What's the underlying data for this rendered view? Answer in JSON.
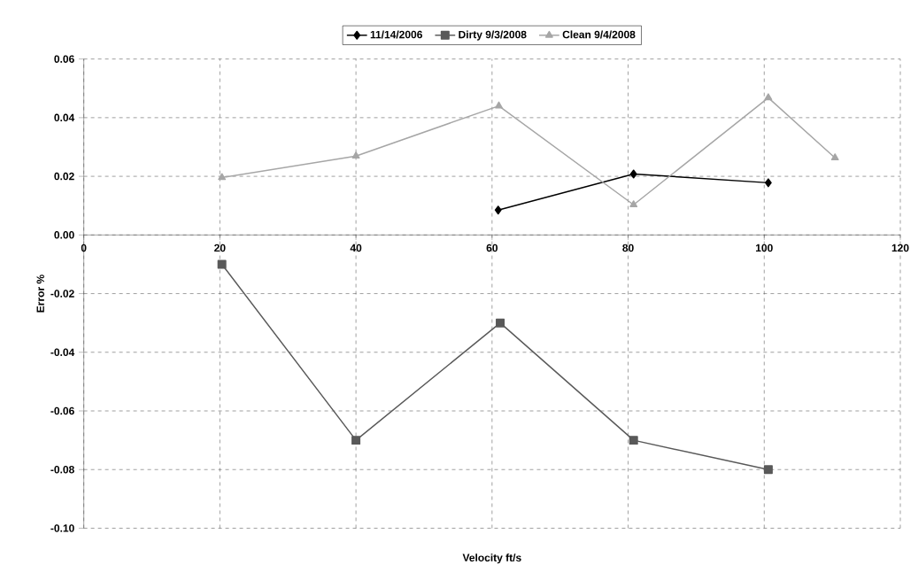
{
  "chart_data": {
    "type": "line",
    "xlabel": "Velocity ft/s",
    "ylabel": "Error %",
    "series": [
      {
        "name": "11/14/2006",
        "color": "#000000",
        "marker": "diamond",
        "x": [
          60.9,
          80.8,
          100.6
        ],
        "values": [
          0.0085,
          0.0208,
          0.0178
        ]
      },
      {
        "name": "Dirty  9/3/2008",
        "color": "#595959",
        "marker": "square",
        "x": [
          20.3,
          40,
          61.2,
          80.8,
          100.6
        ],
        "values": [
          -0.01,
          -0.07,
          -0.03,
          -0.07,
          -0.08
        ]
      },
      {
        "name": "Clean  9/4/2008",
        "color": "#a6a6a6",
        "marker": "triangle",
        "x": [
          20.3,
          40,
          61,
          80.8,
          100.6,
          110.4
        ],
        "values": [
          0.0196,
          0.0269,
          0.044,
          0.0103,
          0.0468,
          0.0263
        ]
      }
    ],
    "xlim": [
      0,
      120
    ],
    "xticks": [
      0,
      20,
      40,
      60,
      80,
      100,
      120
    ],
    "ylim": [
      -0.1,
      0.06
    ],
    "yticks": [
      {
        "value": -0.1,
        "label": "-0.10"
      },
      {
        "value": -0.08,
        "label": "-0.08"
      },
      {
        "value": -0.06,
        "label": "-0.06"
      },
      {
        "value": -0.04,
        "label": "-0.04"
      },
      {
        "value": -0.02,
        "label": "-0.02"
      },
      {
        "value": 0,
        "label": "0.00"
      },
      {
        "value": 0.02,
        "label": "0.02"
      },
      {
        "value": 0.04,
        "label": "0.04"
      },
      {
        "value": 0.06,
        "label": "0.06"
      }
    ],
    "grid": true,
    "legend": "top",
    "line_style": "solid"
  }
}
